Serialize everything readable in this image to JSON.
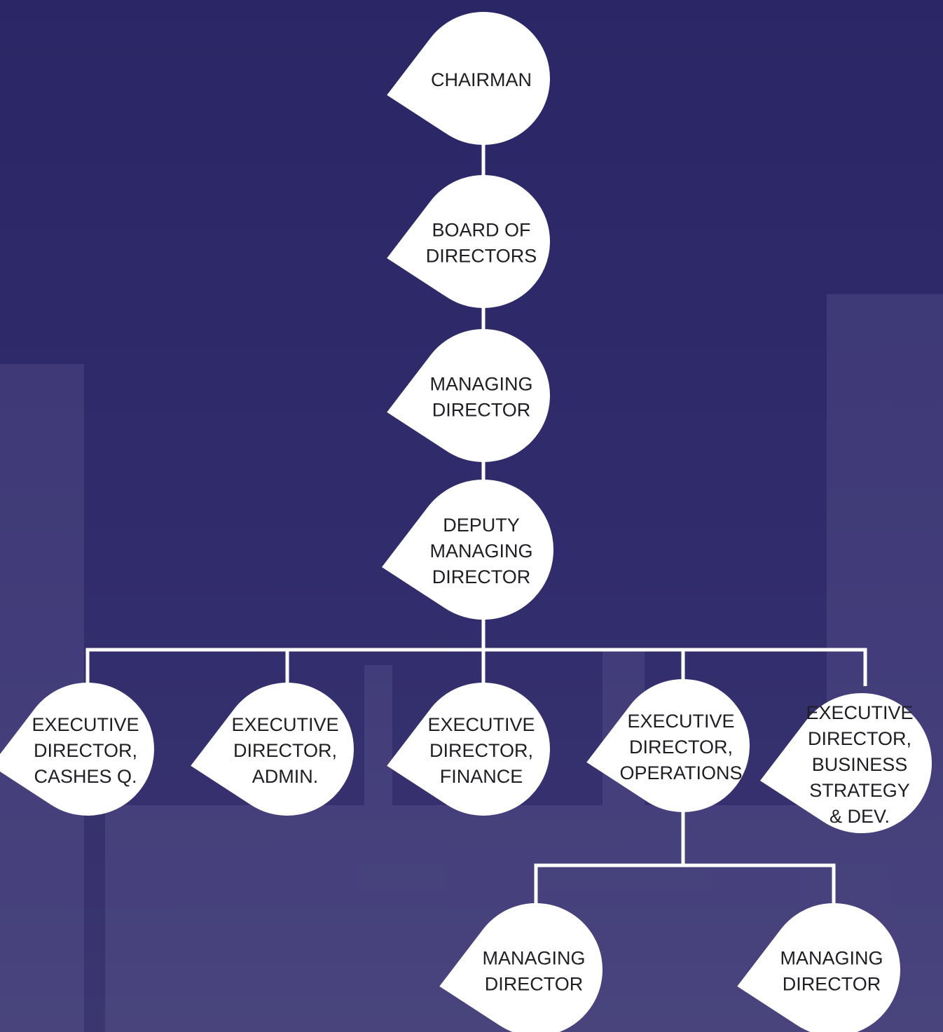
{
  "nodes": [
    {
      "lines": [
        "CHAIRMAN"
      ]
    },
    {
      "lines": [
        "BOARD OF",
        "DIRECTORS"
      ]
    },
    {
      "lines": [
        "MANAGING",
        "DIRECTOR"
      ]
    },
    {
      "lines": [
        "DEPUTY",
        "MANAGING",
        "DIRECTOR"
      ]
    },
    {
      "lines": [
        "EXECUTIVE",
        "DIRECTOR,",
        "CASHES Q."
      ]
    },
    {
      "lines": [
        "EXECUTIVE",
        "DIRECTOR,",
        "ADMIN."
      ]
    },
    {
      "lines": [
        "EXECUTIVE",
        "DIRECTOR,",
        "FINANCE"
      ]
    },
    {
      "lines": [
        "EXECUTIVE",
        "DIRECTOR,",
        "OPERATIONS"
      ]
    },
    {
      "lines": [
        "EXECUTIVE",
        "DIRECTOR,",
        "BUSINESS",
        "STRATEGY",
        "& DEV."
      ]
    },
    {
      "lines": [
        "MANAGING",
        "DIRECTOR"
      ]
    },
    {
      "lines": [
        "MANAGING",
        "DIRECTOR"
      ]
    }
  ]
}
